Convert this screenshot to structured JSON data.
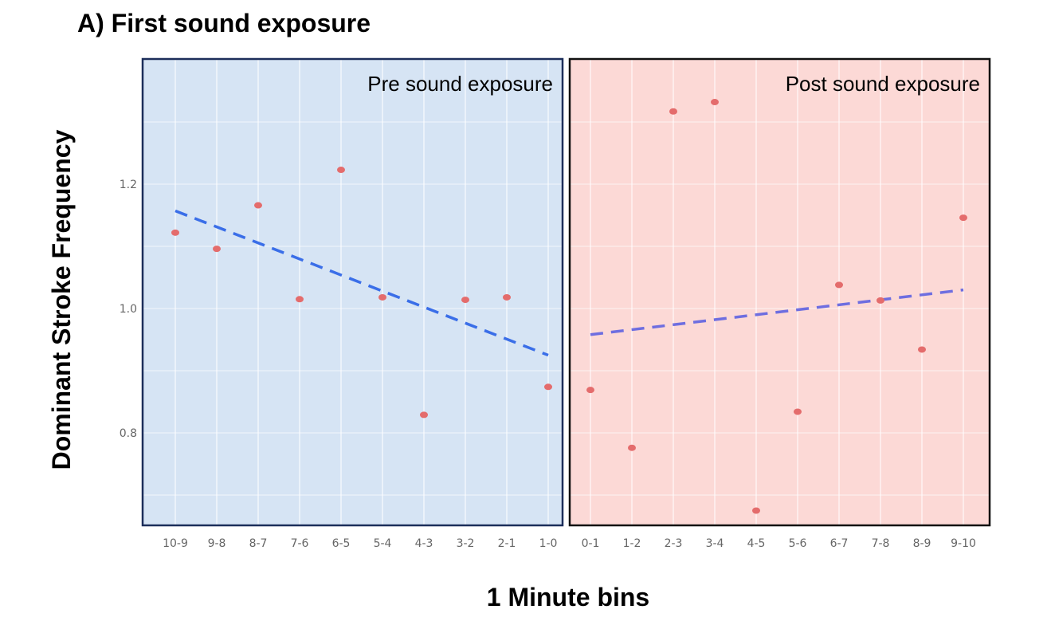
{
  "chart_data": {
    "type": "scatter",
    "title": "A) First sound exposure",
    "xlabel": "1 Minute bins",
    "ylabel": "Dominant Stroke Frequency",
    "ylim": [
      0.65,
      1.35
    ],
    "yticks": [
      "0.8",
      "1.0",
      "1.2"
    ],
    "grid": true,
    "colors": {
      "pre_background": "#d6e4f4",
      "pre_border": "#1c2e5a",
      "post_background": "#fcd9d6",
      "post_border": "#111111",
      "points": "#e46c6c",
      "pre_trend": "#3a6ee8",
      "post_trend": "#6e6ee0"
    },
    "panels": [
      {
        "label": "Pre sound exposure",
        "categories": [
          "10-9",
          "9-8",
          "8-7",
          "7-6",
          "6-5",
          "5-4",
          "4-3",
          "3-2",
          "2-1",
          "1-0"
        ],
        "values": [
          1.122,
          1.096,
          1.166,
          1.015,
          1.223,
          1.018,
          0.829,
          1.014,
          1.018,
          0.874
        ],
        "trend": {
          "start": 1.157,
          "end": 0.925,
          "style": "dashed"
        }
      },
      {
        "label": "Post sound exposure",
        "categories": [
          "0-1",
          "1-2",
          "2-3",
          "3-4",
          "4-5",
          "5-6",
          "6-7",
          "7-8",
          "8-9",
          "9-10"
        ],
        "values": [
          0.869,
          0.776,
          1.317,
          1.332,
          0.675,
          0.834,
          1.038,
          1.013,
          0.934,
          1.146
        ],
        "trend": {
          "start": 0.958,
          "end": 1.03,
          "style": "dashed"
        }
      }
    ]
  }
}
